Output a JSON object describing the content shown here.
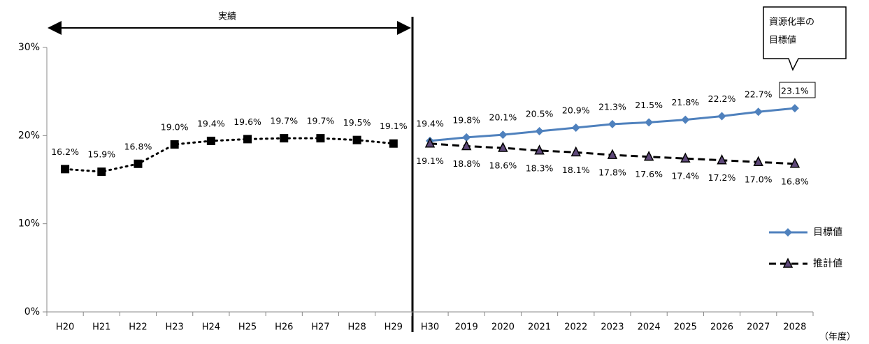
{
  "chart_data": {
    "type": "line",
    "categories": [
      "H20",
      "H21",
      "H22",
      "H23",
      "H24",
      "H25",
      "H26",
      "H27",
      "H28",
      "H29",
      "H30",
      "2019",
      "2020",
      "2021",
      "2022",
      "2023",
      "2024",
      "2025",
      "2026",
      "2027",
      "2028"
    ],
    "x_label": "（年度）",
    "annotations": {
      "period": "実績",
      "callout": [
        "資源化率の",
        "目標値"
      ]
    },
    "ylim": [
      0,
      30
    ],
    "yticks": [
      {
        "value": 0,
        "label": "0%"
      },
      {
        "value": 10,
        "label": "10%"
      },
      {
        "value": 20,
        "label": "20%"
      },
      {
        "value": 30,
        "label": "30%"
      }
    ],
    "legend": "right",
    "series": [
      {
        "color": "#000000",
        "line": "dotted",
        "marker": "square",
        "label_position": "above",
        "values": [
          16.2,
          15.9,
          16.8,
          19.0,
          19.4,
          19.6,
          19.7,
          19.7,
          19.5,
          19.1,
          null,
          null,
          null,
          null,
          null,
          null,
          null,
          null,
          null,
          null,
          null
        ],
        "value_labels": [
          "16.2%",
          "15.9%",
          "16.8%",
          "19.0%",
          "19.4%",
          "19.6%",
          "19.7%",
          "19.7%",
          "19.5%",
          "19.1%",
          null,
          null,
          null,
          null,
          null,
          null,
          null,
          null,
          null,
          null,
          null
        ]
      },
      {
        "name": "目標値",
        "color": "#4f81bd",
        "line": "solid",
        "marker": "diamond",
        "label_position": "above",
        "values": [
          null,
          null,
          null,
          null,
          null,
          null,
          null,
          null,
          null,
          null,
          19.4,
          19.8,
          20.1,
          20.5,
          20.9,
          21.3,
          21.5,
          21.8,
          22.2,
          22.7,
          23.1
        ],
        "value_labels": [
          null,
          null,
          null,
          null,
          null,
          null,
          null,
          null,
          null,
          null,
          "19.4%",
          "19.8%",
          "20.1%",
          "20.5%",
          "20.9%",
          "21.3%",
          "21.5%",
          "21.8%",
          "22.2%",
          "22.7%",
          "23.1%"
        ]
      },
      {
        "name": "推計値",
        "color": "#000000",
        "marker_color": "#5f497a",
        "line": "dashed",
        "marker": "triangle",
        "label_position": "below",
        "values": [
          null,
          null,
          null,
          null,
          null,
          null,
          null,
          null,
          null,
          null,
          19.1,
          18.8,
          18.6,
          18.3,
          18.1,
          17.8,
          17.6,
          17.4,
          17.2,
          17.0,
          16.8
        ],
        "value_labels": [
          null,
          null,
          null,
          null,
          null,
          null,
          null,
          null,
          null,
          null,
          "19.1%",
          "18.8%",
          "18.6%",
          "18.3%",
          "18.1%",
          "17.8%",
          "17.6%",
          "17.4%",
          "17.2%",
          "17.0%",
          "16.8%"
        ]
      }
    ]
  }
}
